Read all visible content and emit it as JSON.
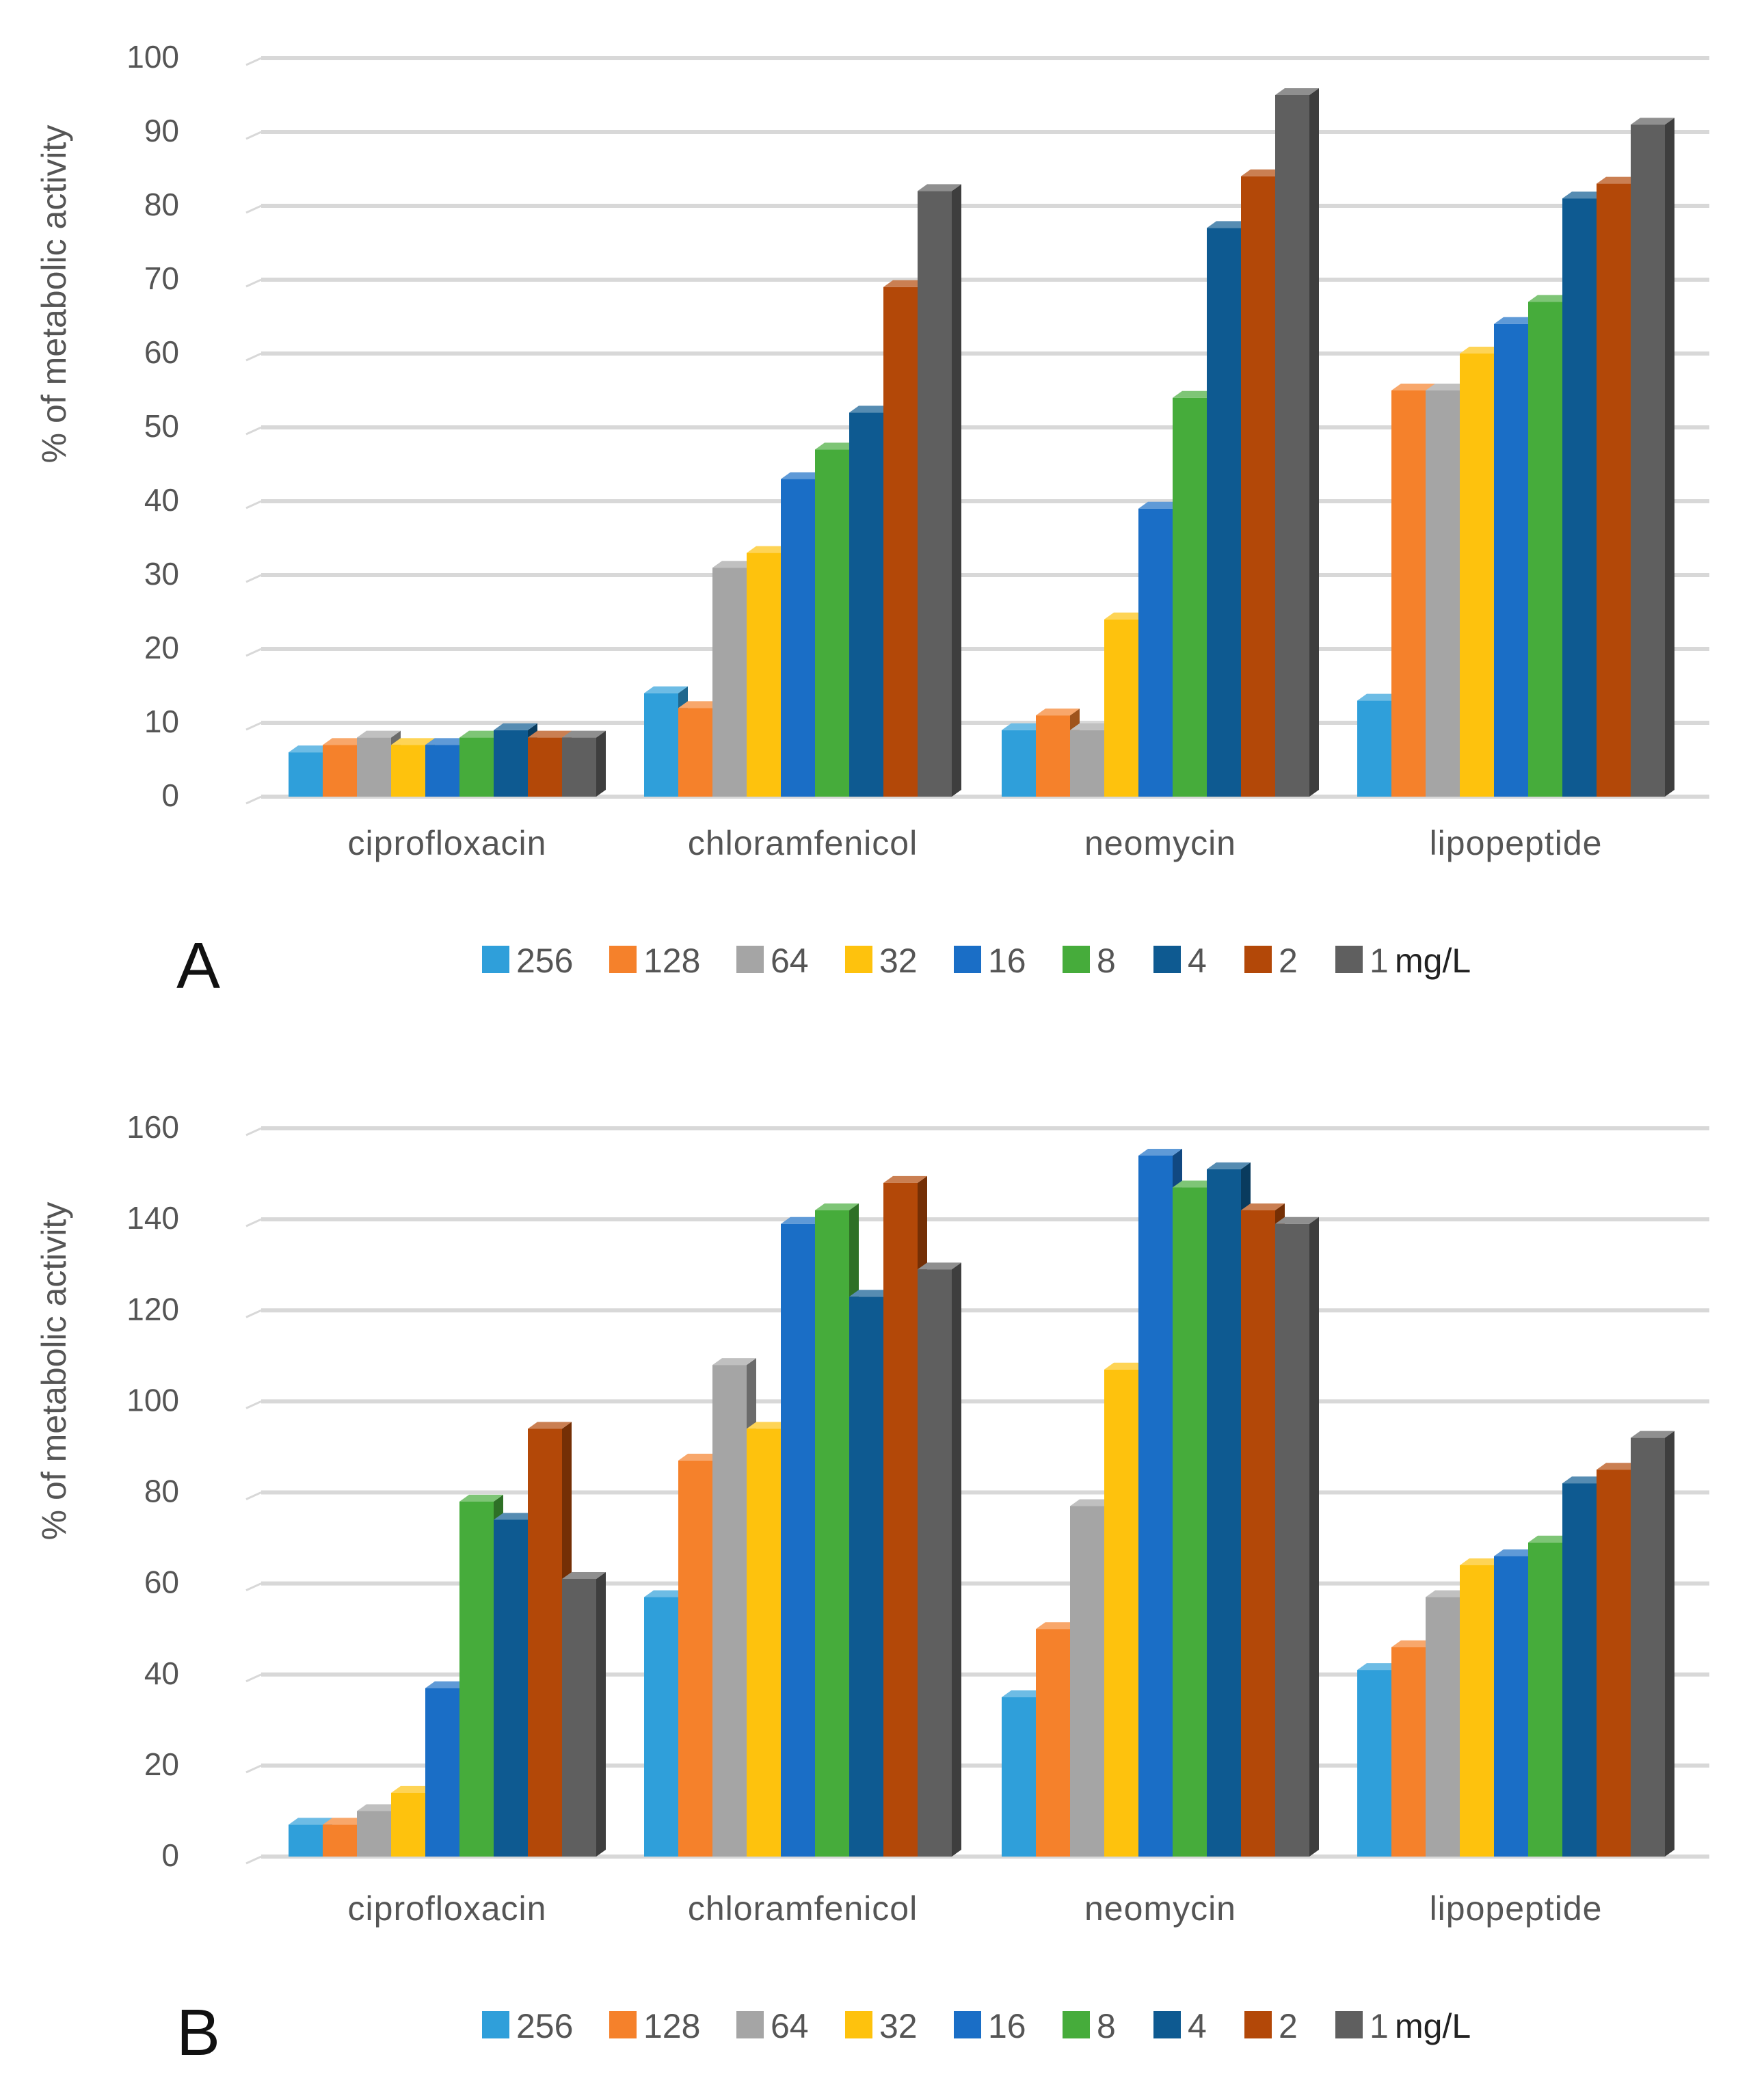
{
  "chart_data": [
    {
      "type": "bar",
      "panel_label": "A",
      "ylabel": "% of metabolic activity",
      "xlabel": "",
      "ylim": [
        0,
        100
      ],
      "yticks": [
        0,
        10,
        20,
        30,
        40,
        50,
        60,
        70,
        80,
        90,
        100
      ],
      "grid": true,
      "legend_position": "bottom",
      "legend_unit": "mg/L",
      "categories": [
        "ciprofloxacin",
        "chloramfenicol",
        "neomycin",
        "lipopeptide"
      ],
      "series": [
        {
          "name": "256",
          "values": [
            6,
            14,
            9,
            13
          ]
        },
        {
          "name": "128",
          "values": [
            7,
            12,
            11,
            55
          ]
        },
        {
          "name": "64",
          "values": [
            8,
            31,
            9,
            55
          ]
        },
        {
          "name": "32",
          "values": [
            7,
            33,
            24,
            60
          ]
        },
        {
          "name": "16",
          "values": [
            7,
            43,
            39,
            64
          ]
        },
        {
          "name": "8",
          "values": [
            8,
            47,
            54,
            67
          ]
        },
        {
          "name": "4",
          "values": [
            9,
            52,
            77,
            81
          ]
        },
        {
          "name": "2",
          "values": [
            8,
            69,
            84,
            83
          ]
        },
        {
          "name": "1",
          "values": [
            8,
            82,
            95,
            91
          ]
        }
      ]
    },
    {
      "type": "bar",
      "panel_label": "B",
      "ylabel": "% of metabolic activity",
      "xlabel": "",
      "ylim": [
        0,
        160
      ],
      "yticks": [
        0,
        20,
        40,
        60,
        80,
        100,
        120,
        140,
        160
      ],
      "grid": true,
      "legend_position": "bottom",
      "legend_unit": "mg/L",
      "categories": [
        "ciprofloxacin",
        "chloramfenicol",
        "neomycin",
        "lipopeptide"
      ],
      "series": [
        {
          "name": "256",
          "values": [
            7,
            57,
            35,
            41
          ]
        },
        {
          "name": "128",
          "values": [
            7,
            87,
            50,
            46
          ]
        },
        {
          "name": "64",
          "values": [
            10,
            108,
            77,
            57
          ]
        },
        {
          "name": "32",
          "values": [
            14,
            94,
            107,
            64
          ]
        },
        {
          "name": "16",
          "values": [
            37,
            139,
            154,
            66
          ]
        },
        {
          "name": "8",
          "values": [
            78,
            142,
            147,
            69
          ]
        },
        {
          "name": "4",
          "values": [
            74,
            123,
            151,
            82
          ]
        },
        {
          "name": "2",
          "values": [
            94,
            148,
            142,
            85
          ]
        },
        {
          "name": "1",
          "values": [
            61,
            129,
            139,
            92
          ]
        }
      ]
    }
  ],
  "colors": {
    "series": [
      "#2f9fda",
      "#f5812b",
      "#a5a5a5",
      "#fec20d",
      "#1a6ec6",
      "#46ac3b",
      "#0e5a91",
      "#b34808",
      "#5f5f5f"
    ],
    "grid": "#d8d8d8",
    "text": "#555555",
    "panel_label": "#111111"
  }
}
